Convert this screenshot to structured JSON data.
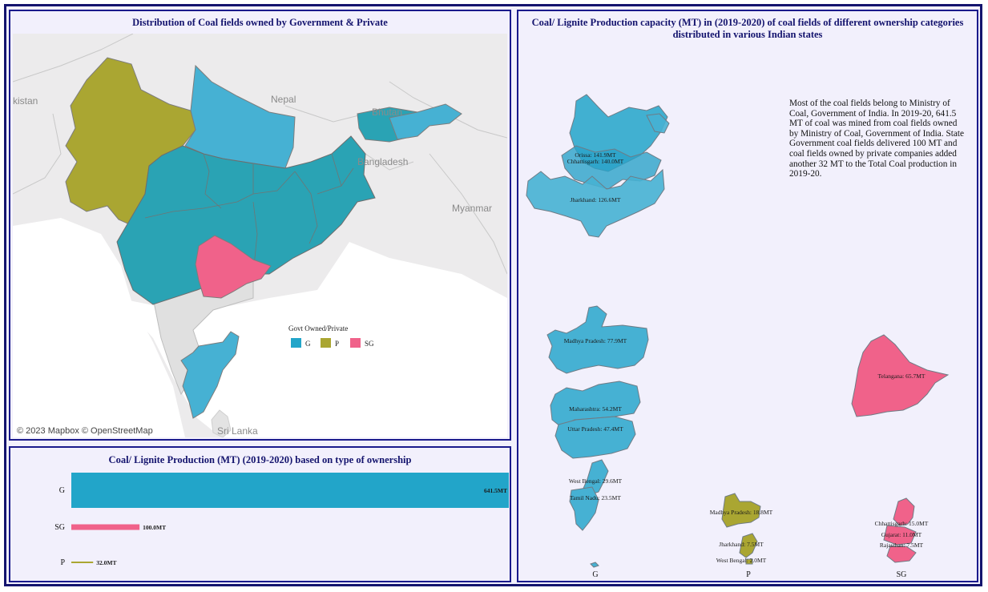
{
  "map_panel": {
    "title": "Distribution of Coal fields owned by Government & Private",
    "attribution": "© 2023 Mapbox  © OpenStreetMap",
    "place_labels": [
      "kistan",
      "Nepal",
      "Bhutan",
      "Bangladesh",
      "Myanmar",
      "Sri Lanka"
    ],
    "legend": {
      "title": "Govt Owned/Private",
      "items": [
        {
          "label": "G",
          "color": "#22a5c9"
        },
        {
          "label": "P",
          "color": "#aaa632"
        },
        {
          "label": "SG",
          "color": "#f0628a"
        }
      ]
    }
  },
  "symbol_panel": {
    "title_line1": "Coal/ Lignite Production capacity (MT) in (2019-2020) of coal fields of different ownership categories",
    "title_line2": "distributed in various Indian states",
    "note": "Most of the coal fields belong to Ministry of Coal, Government of India. In 2019-20, 641.5 MT of coal was mined from coal fields owned by Ministry of Coal, Government of India. State Government coal fields delivered 100 MT and coal fields owned by private companies added another 32 MT to the Total Coal production in 2019-20.",
    "categories": [
      "G",
      "P",
      "SG"
    ]
  },
  "bar_panel": {
    "title": "Coal/ Lignite Production (MT) (2019-2020) based on type of ownership"
  },
  "colors": {
    "G": "#22a5c9",
    "P": "#aaa632",
    "SG": "#f0628a",
    "border": "#1a1a8c"
  },
  "chart_data": [
    {
      "type": "bar",
      "title": "Coal/ Lignite Production (MT) (2019-2020) based on type of ownership",
      "orientation": "horizontal",
      "categories": [
        "G",
        "SG",
        "P"
      ],
      "values": [
        641.5,
        100.0,
        32.0
      ],
      "value_labels": [
        "641.5MT",
        "100.0MT",
        "32.0MT"
      ]
    },
    {
      "type": "other",
      "title": "Coal/ Lignite Production capacity (MT) in (2019-2020) of coal fields of different ownership categories distributed in various Indian states",
      "series": [
        {
          "name": "G",
          "states": [
            {
              "state": "Orissa",
              "value": 141.9,
              "label": "Orissa: 141.9MT"
            },
            {
              "state": "Chhattisgarh",
              "value": 140.0,
              "label": "Chhattisgarh: 140.0MT"
            },
            {
              "state": "Jharkhand",
              "value": 126.6,
              "label": "Jharkhand: 126.6MT"
            },
            {
              "state": "Madhya Pradesh",
              "value": 77.9,
              "label": "Madhya Pradesh: 77.9MT"
            },
            {
              "state": "Maharashtra",
              "value": 54.2,
              "label": "Maharashtra: 54.2MT"
            },
            {
              "state": "Uttar Pradesh",
              "value": 47.4,
              "label": "Uttar Pradesh: 47.4MT"
            },
            {
              "state": "West Bengal",
              "value": 29.6,
              "label": "West Bengal: 29.6MT"
            },
            {
              "state": "Tamil Nadu",
              "value": 23.5,
              "label": "Tamil Nadu: 23.5MT"
            }
          ]
        },
        {
          "name": "P",
          "states": [
            {
              "state": "Madhya Pradesh",
              "value": 18.8,
              "label": "Madhya Pradesh: 18.8MT"
            },
            {
              "state": "Jharkhand",
              "value": 7.5,
              "label": "Jharkhand: 7.5MT"
            },
            {
              "state": "West Bengal",
              "value": 2.0,
              "label": "West Bengal: 2.0MT"
            }
          ]
        },
        {
          "name": "SG",
          "states": [
            {
              "state": "Telangana",
              "value": 65.7,
              "label": "Telangana: 65.7MT"
            },
            {
              "state": "Chhattisgarh",
              "value": 15.0,
              "label": "Chhattisgarh: 15.0MT"
            },
            {
              "state": "Gujarat",
              "value": 11.0,
              "label": "Gujarat: 11.0MT"
            },
            {
              "state": "Rajasthan",
              "value": 7.5,
              "label": "Rajasthan: 7.5MT"
            }
          ]
        }
      ]
    }
  ]
}
